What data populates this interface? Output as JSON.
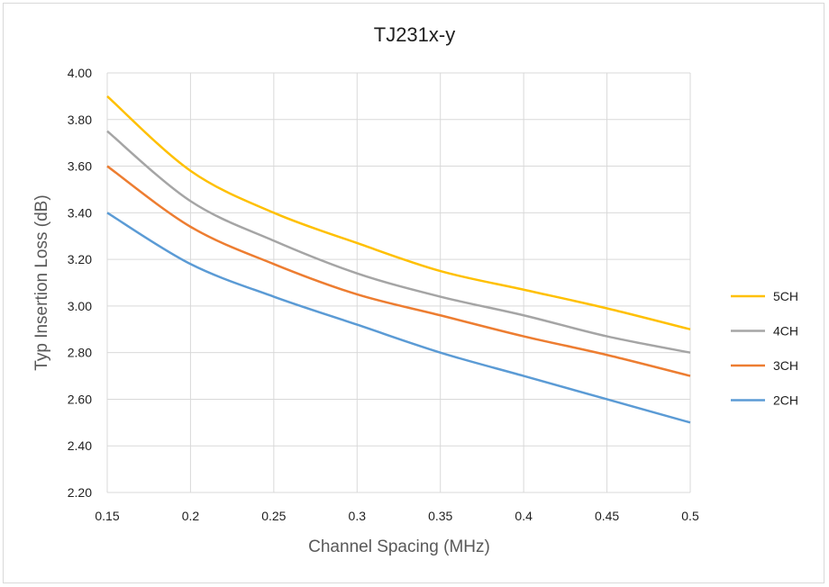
{
  "chart_data": {
    "type": "line",
    "title": "TJ231x-y",
    "xlabel": "Channel Spacing (MHz)",
    "ylabel": "Typ Insertion Loss (dB)",
    "xlim": [
      0.15,
      0.5
    ],
    "ylim": [
      2.2,
      4.0
    ],
    "x_ticks": [
      "0.15",
      "0.2",
      "0.25",
      "0.3",
      "0.35",
      "0.4",
      "0.45",
      "0.5"
    ],
    "y_ticks": [
      "2.20",
      "2.40",
      "2.60",
      "2.80",
      "3.00",
      "3.20",
      "3.40",
      "3.60",
      "3.80",
      "4.00"
    ],
    "grid": true,
    "legend_position": "right",
    "x": [
      0.15,
      0.2,
      0.25,
      0.3,
      0.35,
      0.4,
      0.45,
      0.5
    ],
    "series": [
      {
        "name": "5CH",
        "color": "#FFC000",
        "values": [
          3.9,
          3.58,
          3.4,
          3.27,
          3.15,
          3.07,
          2.99,
          2.9
        ]
      },
      {
        "name": "4CH",
        "color": "#A5A5A5",
        "values": [
          3.75,
          3.45,
          3.28,
          3.14,
          3.04,
          2.96,
          2.87,
          2.8
        ]
      },
      {
        "name": "3CH",
        "color": "#ED7D31",
        "values": [
          3.6,
          3.34,
          3.18,
          3.05,
          2.96,
          2.87,
          2.79,
          2.7
        ]
      },
      {
        "name": "2CH",
        "color": "#5B9BD5",
        "values": [
          3.4,
          3.18,
          3.04,
          2.92,
          2.8,
          2.7,
          2.6,
          2.5
        ]
      }
    ]
  }
}
